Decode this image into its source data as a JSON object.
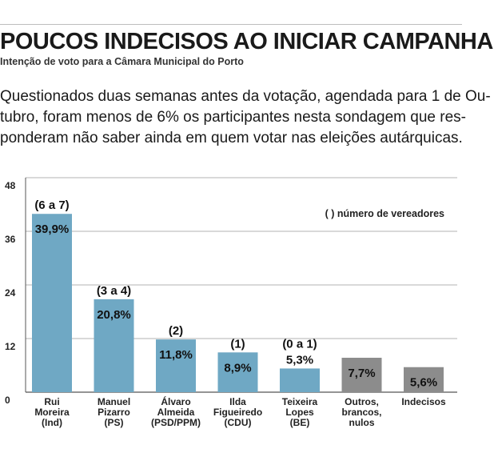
{
  "header": {
    "title": "POUCOS INDECISOS AO INICIAR CAMPANHA",
    "subtitle": "Intenção de voto para a Câmara Municipal do Porto",
    "intro_lines": [
      "Questionados duas semanas antes da votação, agendada para 1 de Ou-",
      "tubro, foram menos de 6% os participantes nesta sondagem que res-",
      "ponderam não saber ainda em quem votar nas eleições autárquicas."
    ]
  },
  "chart_data": {
    "type": "bar",
    "note": "( ) número de vereadores",
    "ylim": [
      0,
      48
    ],
    "yticks": [
      0,
      12,
      24,
      36,
      48
    ],
    "ytick_labels": [
      "0",
      "12",
      "24",
      "36",
      "48"
    ],
    "grid": true,
    "categories": [
      [
        "Rui",
        "Moreira",
        "(Ind)"
      ],
      [
        "Manuel",
        "Pizarro",
        "(PS)"
      ],
      [
        "Álvaro",
        "Almeida",
        "(PSD/PPM)"
      ],
      [
        "Ilda",
        "Figueiredo",
        "(CDU)"
      ],
      [
        "Teixeira",
        "Lopes",
        "(BE)"
      ],
      [
        "Outros,",
        "brancos,",
        "nulos"
      ],
      [
        "Indecisos"
      ]
    ],
    "values": [
      39.9,
      20.8,
      11.8,
      8.9,
      5.3,
      7.7,
      5.6
    ],
    "value_labels": [
      "39,9%",
      "20,8%",
      "11,8%",
      "8,9%",
      "5,3%",
      "7,7%",
      "5,6%"
    ],
    "seat_labels": [
      "(6 a 7)",
      "(3 a 4)",
      "(2)",
      "(1)",
      "(0 a 1)",
      "",
      ""
    ],
    "colors": [
      "#6fa8c4",
      "#6fa8c4",
      "#6fa8c4",
      "#6fa8c4",
      "#6fa8c4",
      "#8c8c8c",
      "#8c8c8c"
    ]
  }
}
